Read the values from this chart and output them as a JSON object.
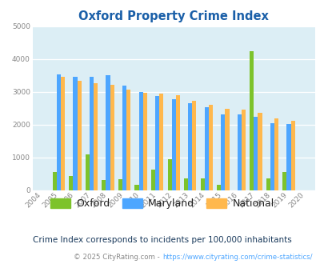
{
  "title": "Oxford Property Crime Index",
  "years": [
    2004,
    2005,
    2006,
    2007,
    2008,
    2009,
    2010,
    2011,
    2012,
    2013,
    2014,
    2015,
    2016,
    2017,
    2018,
    2019,
    2020
  ],
  "oxford": [
    0,
    550,
    420,
    1100,
    320,
    330,
    170,
    620,
    950,
    350,
    360,
    170,
    0,
    4250,
    350,
    550,
    0
  ],
  "maryland": [
    0,
    3530,
    3470,
    3450,
    3520,
    3200,
    3000,
    2870,
    2770,
    2650,
    2520,
    2320,
    2300,
    2230,
    2040,
    2010,
    0
  ],
  "national": [
    0,
    3460,
    3350,
    3270,
    3220,
    3060,
    2970,
    2940,
    2890,
    2730,
    2600,
    2490,
    2460,
    2370,
    2200,
    2110,
    0
  ],
  "oxford_color": "#7dc32b",
  "maryland_color": "#4da6ff",
  "national_color": "#ffb84d",
  "bg_color": "#dceef5",
  "ylim": [
    0,
    5000
  ],
  "yticks": [
    0,
    1000,
    2000,
    3000,
    4000,
    5000
  ],
  "subtitle": "Crime Index corresponds to incidents per 100,000 inhabitants",
  "footer": "© 2025 CityRating.com - https://www.cityrating.com/crime-statistics/",
  "bar_width": 0.25,
  "title_color": "#1a5fa8",
  "tick_color": "#888888",
  "subtitle_color": "#1a3a5c",
  "footer_color": "#888888",
  "footer_link_color": "#4da6ff"
}
